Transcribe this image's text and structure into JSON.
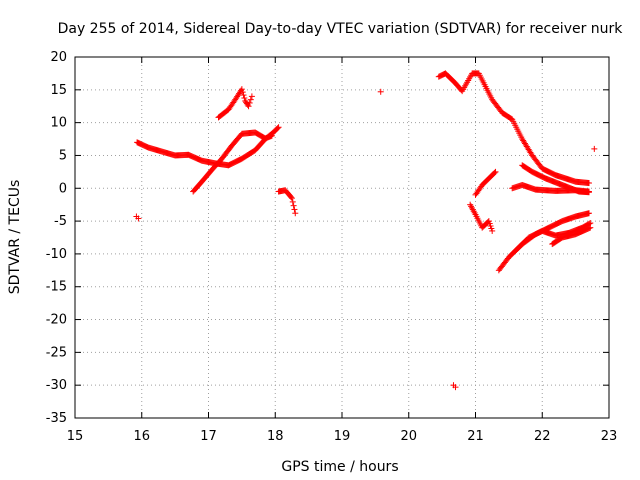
{
  "chart_data": {
    "type": "scatter",
    "title": "Day 255 of 2014, Sidereal Day-to-day VTEC variation (SDTVAR) for receiver nurk",
    "xlabel": "GPS time / hours",
    "ylabel": "SDTVAR / TECUs",
    "xlim": [
      15,
      23
    ],
    "ylim": [
      -35,
      20
    ],
    "xticks": [
      15,
      16,
      17,
      18,
      19,
      20,
      21,
      22,
      23
    ],
    "yticks": [
      20,
      15,
      10,
      5,
      0,
      -5,
      -10,
      -15,
      -20,
      -25,
      -30,
      -35
    ],
    "grid": true,
    "marker": "plus",
    "color": "#ff0000",
    "isolated_points": [
      {
        "x": 15.92,
        "y": -4.3
      },
      {
        "x": 15.95,
        "y": -4.6
      },
      {
        "x": 19.58,
        "y": 14.7
      },
      {
        "x": 20.67,
        "y": -30.0
      },
      {
        "x": 20.7,
        "y": -30.3
      },
      {
        "x": 22.78,
        "y": 6.0
      }
    ],
    "tracks": [
      {
        "name": "track-1",
        "points": [
          [
            15.93,
            7.0
          ],
          [
            16.1,
            6.2
          ],
          [
            16.3,
            5.6
          ],
          [
            16.5,
            5.0
          ],
          [
            16.7,
            5.1
          ],
          [
            16.9,
            4.2
          ],
          [
            17.1,
            3.8
          ],
          [
            17.3,
            3.5
          ],
          [
            17.5,
            4.5
          ],
          [
            17.7,
            5.8
          ],
          [
            17.85,
            7.5
          ],
          [
            17.97,
            8.5
          ],
          [
            18.05,
            9.3
          ]
        ]
      },
      {
        "name": "track-2",
        "points": [
          [
            16.77,
            -0.5
          ],
          [
            16.9,
            1.0
          ],
          [
            17.05,
            2.8
          ],
          [
            17.2,
            4.5
          ],
          [
            17.35,
            6.5
          ],
          [
            17.5,
            8.3
          ],
          [
            17.7,
            8.5
          ],
          [
            17.85,
            7.6
          ],
          [
            17.95,
            8.0
          ]
        ]
      },
      {
        "name": "track-3",
        "points": [
          [
            17.15,
            10.8
          ],
          [
            17.3,
            12.0
          ],
          [
            17.4,
            13.5
          ],
          [
            17.5,
            15.1
          ],
          [
            17.55,
            13.3
          ],
          [
            17.6,
            12.5
          ],
          [
            17.65,
            14.0
          ]
        ]
      },
      {
        "name": "track-4",
        "points": [
          [
            18.05,
            -0.5
          ],
          [
            18.15,
            -0.3
          ],
          [
            18.25,
            -1.5
          ],
          [
            18.3,
            -3.8
          ]
        ]
      },
      {
        "name": "track-5",
        "points": [
          [
            20.45,
            17.0
          ],
          [
            20.55,
            17.5
          ],
          [
            20.7,
            16.0
          ],
          [
            20.8,
            14.8
          ],
          [
            20.95,
            17.5
          ],
          [
            21.05,
            17.5
          ],
          [
            21.15,
            15.5
          ],
          [
            21.25,
            13.5
          ],
          [
            21.4,
            11.5
          ],
          [
            21.55,
            10.5
          ],
          [
            21.7,
            7.5
          ],
          [
            21.85,
            5.0
          ],
          [
            22.0,
            3.0
          ],
          [
            22.2,
            2.0
          ],
          [
            22.5,
            1.0
          ],
          [
            22.7,
            0.8
          ]
        ]
      },
      {
        "name": "track-6",
        "points": [
          [
            20.92,
            -2.5
          ],
          [
            21.0,
            -4.0
          ],
          [
            21.1,
            -6.0
          ],
          [
            21.2,
            -5.0
          ],
          [
            21.25,
            -6.5
          ]
        ]
      },
      {
        "name": "track-7",
        "points": [
          [
            21.0,
            -1.0
          ],
          [
            21.1,
            0.5
          ],
          [
            21.2,
            1.5
          ],
          [
            21.3,
            2.5
          ]
        ]
      },
      {
        "name": "track-8",
        "points": [
          [
            21.55,
            0.0
          ],
          [
            21.7,
            0.5
          ],
          [
            21.9,
            -0.2
          ],
          [
            22.2,
            -0.4
          ],
          [
            22.5,
            -0.3
          ],
          [
            22.7,
            -0.5
          ]
        ]
      },
      {
        "name": "track-9",
        "points": [
          [
            21.7,
            3.5
          ],
          [
            21.85,
            2.5
          ],
          [
            22.05,
            1.5
          ],
          [
            22.3,
            0.5
          ],
          [
            22.55,
            -0.5
          ],
          [
            22.7,
            -0.6
          ]
        ]
      },
      {
        "name": "track-10",
        "points": [
          [
            21.35,
            -12.5
          ],
          [
            21.5,
            -10.5
          ],
          [
            21.7,
            -8.5
          ],
          [
            21.9,
            -7.0
          ],
          [
            22.1,
            -6.0
          ],
          [
            22.3,
            -5.0
          ],
          [
            22.5,
            -4.3
          ],
          [
            22.7,
            -3.8
          ]
        ]
      },
      {
        "name": "track-11",
        "points": [
          [
            21.6,
            -9.5
          ],
          [
            21.8,
            -7.5
          ],
          [
            22.0,
            -6.5
          ],
          [
            22.2,
            -7.2
          ],
          [
            22.4,
            -6.8
          ],
          [
            22.6,
            -6.0
          ],
          [
            22.72,
            -5.3
          ]
        ]
      },
      {
        "name": "track-12",
        "points": [
          [
            22.15,
            -8.5
          ],
          [
            22.3,
            -7.5
          ],
          [
            22.5,
            -7.0
          ],
          [
            22.72,
            -6.0
          ]
        ]
      }
    ]
  }
}
